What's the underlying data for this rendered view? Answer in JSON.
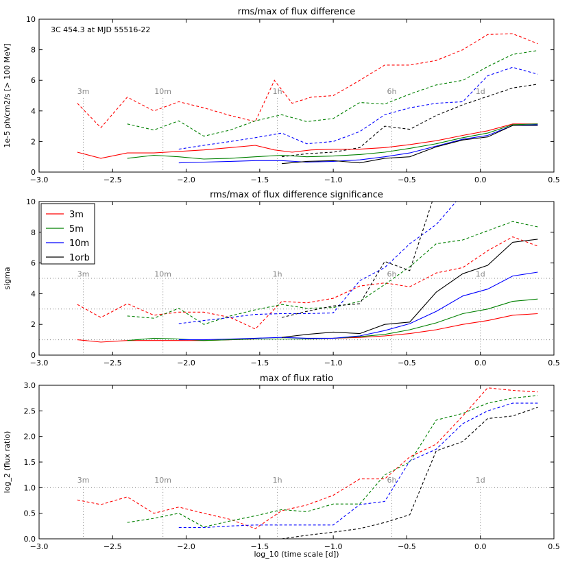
{
  "figure": {
    "xlabel": "log_10 (time scale [d])"
  },
  "chart_data": [
    {
      "type": "line",
      "title": "rms/max of flux difference",
      "annotation": "3C 454.3 at MJD 55516-22",
      "ylabel": "1e-5 ph/cm2/s [> 100 MeV]",
      "xlabel": "",
      "xlim": [
        -3.0,
        0.5
      ],
      "ylim": [
        0,
        10
      ],
      "xticks": [
        "−3.0",
        "−2.5",
        "−2.0",
        "−1.5",
        "−1.0",
        "−0.5",
        "0.0",
        "0.5"
      ],
      "yticks": [
        "0",
        "2",
        "4",
        "6",
        "8",
        "10"
      ],
      "markers": [
        {
          "label": "3m",
          "x": -2.699
        },
        {
          "label": "10m",
          "x": -2.158
        },
        {
          "label": "1h",
          "x": -1.38
        },
        {
          "label": "6h",
          "x": -0.602
        },
        {
          "label": "1d",
          "x": 0.0
        }
      ],
      "hlines": [],
      "series": [
        {
          "color": "#ff0000",
          "dash": true,
          "x": [
            -2.74,
            -2.58,
            -2.4,
            -2.22,
            -2.05,
            -1.88,
            -1.7,
            -1.53,
            -1.4,
            -1.28,
            -1.15,
            -1.0,
            -0.82,
            -0.65,
            -0.48,
            -0.3,
            -0.12,
            0.05,
            0.22,
            0.39
          ],
          "y": [
            4.5,
            2.9,
            4.9,
            4.0,
            4.6,
            4.2,
            3.7,
            3.3,
            6.0,
            4.5,
            4.9,
            5.0,
            6.0,
            7.0,
            7.0,
            7.3,
            8.0,
            9.0,
            9.05,
            8.4
          ]
        },
        {
          "color": "#008000",
          "dash": true,
          "x": [
            -2.4,
            -2.22,
            -2.05,
            -1.88,
            -1.7,
            -1.53,
            -1.35,
            -1.18,
            -1.0,
            -0.82,
            -0.65,
            -0.48,
            -0.3,
            -0.12,
            0.05,
            0.22,
            0.39
          ],
          "y": [
            3.15,
            2.75,
            3.35,
            2.35,
            2.75,
            3.35,
            3.75,
            3.3,
            3.5,
            4.55,
            4.45,
            5.1,
            5.7,
            6.0,
            6.9,
            7.7,
            7.95
          ]
        },
        {
          "color": "#0000ff",
          "dash": true,
          "x": [
            -2.05,
            -1.88,
            -1.7,
            -1.53,
            -1.35,
            -1.18,
            -1.0,
            -0.82,
            -0.65,
            -0.48,
            -0.3,
            -0.12,
            0.05,
            0.22,
            0.39
          ],
          "y": [
            1.5,
            1.75,
            2.0,
            2.25,
            2.55,
            1.85,
            2.0,
            2.65,
            3.75,
            4.2,
            4.5,
            4.6,
            6.3,
            6.85,
            6.4
          ]
        },
        {
          "color": "#000000",
          "dash": true,
          "x": [
            -1.35,
            -1.18,
            -1.0,
            -0.82,
            -0.65,
            -0.48,
            -0.3,
            -0.12,
            0.05,
            0.22,
            0.39
          ],
          "y": [
            1.0,
            1.2,
            1.3,
            1.6,
            3.0,
            2.8,
            3.7,
            4.4,
            4.95,
            5.5,
            5.75
          ]
        },
        {
          "color": "#ff0000",
          "dash": false,
          "x": [
            -2.74,
            -2.58,
            -2.4,
            -2.22,
            -2.05,
            -1.88,
            -1.7,
            -1.53,
            -1.4,
            -1.28,
            -1.15,
            -1.0,
            -0.82,
            -0.65,
            -0.48,
            -0.3,
            -0.12,
            0.05,
            0.22,
            0.39
          ],
          "y": [
            1.3,
            0.9,
            1.25,
            1.25,
            1.35,
            1.45,
            1.6,
            1.75,
            1.45,
            1.3,
            1.45,
            1.5,
            1.5,
            1.6,
            1.8,
            2.05,
            2.4,
            2.7,
            3.15,
            3.15
          ]
        },
        {
          "color": "#008000",
          "dash": false,
          "x": [
            -2.4,
            -2.22,
            -2.05,
            -1.88,
            -1.7,
            -1.53,
            -1.35,
            -1.18,
            -1.0,
            -0.82,
            -0.65,
            -0.48,
            -0.3,
            -0.12,
            0.05,
            0.22,
            0.39
          ],
          "y": [
            0.9,
            1.1,
            1.0,
            0.85,
            0.9,
            1.0,
            1.1,
            1.0,
            1.05,
            1.15,
            1.3,
            1.55,
            1.85,
            2.25,
            2.55,
            3.1,
            3.15
          ]
        },
        {
          "color": "#0000ff",
          "dash": false,
          "x": [
            -2.05,
            -1.88,
            -1.7,
            -1.53,
            -1.35,
            -1.18,
            -1.0,
            -0.82,
            -0.65,
            -0.48,
            -0.3,
            -0.12,
            0.05,
            0.22,
            0.39
          ],
          "y": [
            0.6,
            0.65,
            0.7,
            0.75,
            0.75,
            0.65,
            0.7,
            0.8,
            1.0,
            1.25,
            1.7,
            2.15,
            2.4,
            3.05,
            3.1
          ]
        },
        {
          "color": "#000000",
          "dash": false,
          "x": [
            -1.35,
            -1.18,
            -1.0,
            -0.82,
            -0.65,
            -0.48,
            -0.3,
            -0.12,
            0.05,
            0.22,
            0.39
          ],
          "y": [
            0.55,
            0.7,
            0.75,
            0.6,
            0.9,
            1.0,
            1.65,
            2.1,
            2.3,
            3.05,
            3.05
          ]
        }
      ]
    },
    {
      "type": "line",
      "title": "rms/max of flux difference significance",
      "ylabel": "sigma",
      "xlabel": "",
      "xlim": [
        -3.0,
        0.5
      ],
      "ylim": [
        0,
        10
      ],
      "xticks": [
        "−3.0",
        "−2.5",
        "−2.0",
        "−1.5",
        "−1.0",
        "−0.5",
        "0.0",
        "0.5"
      ],
      "yticks": [
        "0",
        "2",
        "4",
        "6",
        "8",
        "10"
      ],
      "markers": [
        {
          "label": "3m",
          "x": -2.699
        },
        {
          "label": "10m",
          "x": -2.158
        },
        {
          "label": "1h",
          "x": -1.38
        },
        {
          "label": "6h",
          "x": -0.602
        },
        {
          "label": "1d",
          "x": 0.0
        }
      ],
      "hlines": [
        1,
        3,
        5
      ],
      "legend": {
        "placement": "top-left",
        "entries": [
          {
            "label": "3m",
            "color": "#ff0000"
          },
          {
            "label": "5m",
            "color": "#008000"
          },
          {
            "label": "10m",
            "color": "#0000ff"
          },
          {
            "label": "1orb",
            "color": "#000000"
          }
        ]
      },
      "series": [
        {
          "color": "#ff0000",
          "dash": true,
          "x": [
            -2.74,
            -2.58,
            -2.4,
            -2.22,
            -2.05,
            -1.88,
            -1.7,
            -1.53,
            -1.35,
            -1.18,
            -1.0,
            -0.82,
            -0.65,
            -0.48,
            -0.3,
            -0.12,
            0.05,
            0.22,
            0.39
          ],
          "y": [
            3.3,
            2.45,
            3.35,
            2.6,
            2.8,
            2.8,
            2.45,
            1.7,
            3.5,
            3.4,
            3.7,
            4.5,
            4.7,
            4.45,
            5.35,
            5.7,
            6.8,
            7.7,
            7.1
          ]
        },
        {
          "color": "#008000",
          "dash": true,
          "x": [
            -2.4,
            -2.22,
            -2.05,
            -1.88,
            -1.7,
            -1.53,
            -1.35,
            -1.18,
            -1.0,
            -0.82,
            -0.65,
            -0.48,
            -0.3,
            -0.12,
            0.05,
            0.22,
            0.39
          ],
          "y": [
            2.55,
            2.4,
            3.05,
            2.0,
            2.55,
            2.95,
            3.3,
            3.05,
            3.1,
            3.5,
            4.6,
            5.75,
            7.25,
            7.5,
            8.1,
            8.7,
            8.35
          ]
        },
        {
          "color": "#0000ff",
          "dash": true,
          "x": [
            -2.05,
            -1.88,
            -1.7,
            -1.53,
            -1.35,
            -1.18,
            -1.0,
            -0.82,
            -0.65,
            -0.48,
            -0.3,
            -0.12
          ],
          "y": [
            2.05,
            2.25,
            2.45,
            2.65,
            2.7,
            2.7,
            2.75,
            4.85,
            5.7,
            7.25,
            8.5,
            10.5
          ]
        },
        {
          "color": "#000000",
          "dash": true,
          "x": [
            -1.35,
            -1.18,
            -1.0,
            -0.82,
            -0.65,
            -0.48,
            -0.3
          ],
          "y": [
            2.45,
            2.85,
            3.2,
            3.35,
            6.1,
            5.5,
            10.8
          ]
        },
        {
          "color": "#ff0000",
          "dash": false,
          "x": [
            -2.74,
            -2.58,
            -2.4,
            -2.22,
            -2.05,
            -1.88,
            -1.7,
            -1.53,
            -1.35,
            -1.18,
            -1.0,
            -0.82,
            -0.65,
            -0.48,
            -0.3,
            -0.12,
            0.05,
            0.22,
            0.39
          ],
          "y": [
            1.0,
            0.85,
            0.95,
            0.95,
            0.95,
            0.95,
            1.0,
            1.05,
            1.05,
            1.05,
            1.1,
            1.15,
            1.25,
            1.4,
            1.65,
            2.0,
            2.25,
            2.6,
            2.7
          ]
        },
        {
          "color": "#008000",
          "dash": false,
          "x": [
            -2.4,
            -2.22,
            -2.05,
            -1.88,
            -1.7,
            -1.53,
            -1.35,
            -1.18,
            -1.0,
            -0.82,
            -0.65,
            -0.48,
            -0.3,
            -0.12,
            0.05,
            0.22,
            0.39
          ],
          "y": [
            0.95,
            1.1,
            1.05,
            0.95,
            1.0,
            1.05,
            1.05,
            1.05,
            1.1,
            1.2,
            1.35,
            1.65,
            2.1,
            2.7,
            3.0,
            3.5,
            3.65
          ]
        },
        {
          "color": "#0000ff",
          "dash": false,
          "x": [
            -2.05,
            -1.88,
            -1.7,
            -1.53,
            -1.35,
            -1.18,
            -1.0,
            -0.82,
            -0.65,
            -0.48,
            -0.3,
            -0.12,
            0.05,
            0.22,
            0.39
          ],
          "y": [
            1.0,
            1.0,
            1.05,
            1.1,
            1.15,
            1.1,
            1.1,
            1.25,
            1.6,
            2.05,
            2.85,
            3.85,
            4.3,
            5.15,
            5.4
          ]
        },
        {
          "color": "#000000",
          "dash": false,
          "x": [
            -1.35,
            -1.18,
            -1.0,
            -0.82,
            -0.65,
            -0.48,
            -0.3,
            -0.12,
            0.05,
            0.22,
            0.39
          ],
          "y": [
            1.15,
            1.35,
            1.5,
            1.4,
            2.0,
            2.15,
            4.1,
            5.3,
            5.85,
            7.35,
            7.55
          ]
        }
      ]
    },
    {
      "type": "line",
      "title": "max of flux ratio",
      "ylabel": "log_2 (flux ratio)",
      "xlabel": "log_10 (time scale [d])",
      "xlim": [
        -3.0,
        0.5
      ],
      "ylim": [
        0,
        3
      ],
      "xticks": [
        "−3.0",
        "−2.5",
        "−2.0",
        "−1.5",
        "−1.0",
        "−0.5",
        "0.0",
        "0.5"
      ],
      "yticks": [
        "0.0",
        "0.5",
        "1.0",
        "1.5",
        "2.0",
        "2.5",
        "3.0"
      ],
      "markers": [
        {
          "label": "3m",
          "x": -2.699
        },
        {
          "label": "10m",
          "x": -2.158
        },
        {
          "label": "1h",
          "x": -1.38
        },
        {
          "label": "6h",
          "x": -0.602
        },
        {
          "label": "1d",
          "x": 0.0
        }
      ],
      "hlines": [
        1
      ],
      "series": [
        {
          "color": "#ff0000",
          "dash": true,
          "x": [
            -2.74,
            -2.58,
            -2.4,
            -2.22,
            -2.05,
            -1.88,
            -1.7,
            -1.53,
            -1.35,
            -1.18,
            -1.0,
            -0.82,
            -0.65,
            -0.48,
            -0.3,
            -0.12,
            0.05,
            0.22,
            0.39
          ],
          "y": [
            0.76,
            0.67,
            0.82,
            0.5,
            0.62,
            0.5,
            0.38,
            0.2,
            0.55,
            0.66,
            0.85,
            1.17,
            1.17,
            1.6,
            1.85,
            2.4,
            2.95,
            2.9,
            2.87
          ]
        },
        {
          "color": "#008000",
          "dash": true,
          "x": [
            -2.4,
            -2.22,
            -2.05,
            -1.88,
            -1.7,
            -1.53,
            -1.35,
            -1.18,
            -1.0,
            -0.82,
            -0.65,
            -0.48,
            -0.3,
            -0.12,
            0.05,
            0.22,
            0.39
          ],
          "y": [
            0.32,
            0.4,
            0.5,
            0.23,
            0.35,
            0.45,
            0.57,
            0.53,
            0.68,
            0.68,
            1.25,
            1.5,
            2.32,
            2.45,
            2.65,
            2.75,
            2.8
          ]
        },
        {
          "color": "#0000ff",
          "dash": true,
          "x": [
            -2.05,
            -1.88,
            -1.7,
            -1.53,
            -1.35,
            -1.18,
            -1.0,
            -0.82,
            -0.65,
            -0.48,
            -0.3,
            -0.12,
            0.05,
            0.22,
            0.39
          ],
          "y": [
            0.22,
            0.22,
            0.25,
            0.27,
            0.27,
            0.27,
            0.27,
            0.67,
            0.73,
            1.52,
            1.75,
            2.25,
            2.5,
            2.65,
            2.65
          ]
        },
        {
          "color": "#000000",
          "dash": true,
          "x": [
            -1.35,
            -1.18,
            -1.0,
            -0.82,
            -0.65,
            -0.48,
            -0.3,
            -0.12,
            0.05,
            0.22,
            0.39
          ],
          "y": [
            0.0,
            0.07,
            0.13,
            0.2,
            0.32,
            0.47,
            1.72,
            1.9,
            2.35,
            2.4,
            2.57
          ]
        }
      ]
    }
  ]
}
